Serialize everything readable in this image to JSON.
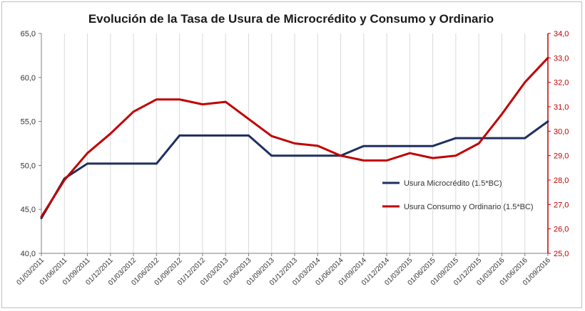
{
  "chart_data": {
    "type": "line",
    "title": "Evolución de la Tasa de Usura de Microcrédito y Consumo y Ordinario",
    "categories": [
      "01/03/2011",
      "01/06/2011",
      "01/09/2011",
      "01/12/2011",
      "01/03/2012",
      "01/06/2012",
      "01/09/2012",
      "01/12/2012",
      "01/03/2013",
      "01/06/2013",
      "01/09/2013",
      "01/12/2013",
      "01/03/2014",
      "01/06/2014",
      "01/09/2014",
      "01/12/2014",
      "01/03/2015",
      "01/06/2015",
      "01/09/2015",
      "01/12/2015",
      "01/03/2016",
      "01/06/2016",
      "01/09/2016"
    ],
    "y_left": {
      "min": 40,
      "max": 65,
      "step": 5,
      "tick_labels": [
        "40,0",
        "45,0",
        "50,0",
        "55,0",
        "60,0",
        "65,0"
      ]
    },
    "y_right": {
      "min": 25,
      "max": 34,
      "step": 1,
      "tick_labels": [
        "25,0",
        "26,0",
        "27,0",
        "28,0",
        "29,0",
        "30,0",
        "31,0",
        "32,0",
        "33,0",
        "34,0"
      ]
    },
    "series": [
      {
        "name": "Usura Microcrédito (1.5*BC)",
        "axis": "left",
        "color": "#1f2f5f",
        "values": [
          44.0,
          48.5,
          50.2,
          50.2,
          50.2,
          50.2,
          53.4,
          53.4,
          53.4,
          53.4,
          51.1,
          51.1,
          51.1,
          51.1,
          52.2,
          52.2,
          52.2,
          52.2,
          53.1,
          53.1,
          53.1,
          53.1,
          55.0
        ]
      },
      {
        "name": "Usura Consumo y Ordinario (1.5*BC)",
        "axis": "right",
        "color": "#c00000",
        "values": [
          26.5,
          28.0,
          29.1,
          29.9,
          30.8,
          31.3,
          31.3,
          31.1,
          31.2,
          30.5,
          29.8,
          29.5,
          29.4,
          29.0,
          28.8,
          28.8,
          29.1,
          28.9,
          29.0,
          29.5,
          30.7,
          32.0,
          33.0
        ]
      }
    ]
  }
}
